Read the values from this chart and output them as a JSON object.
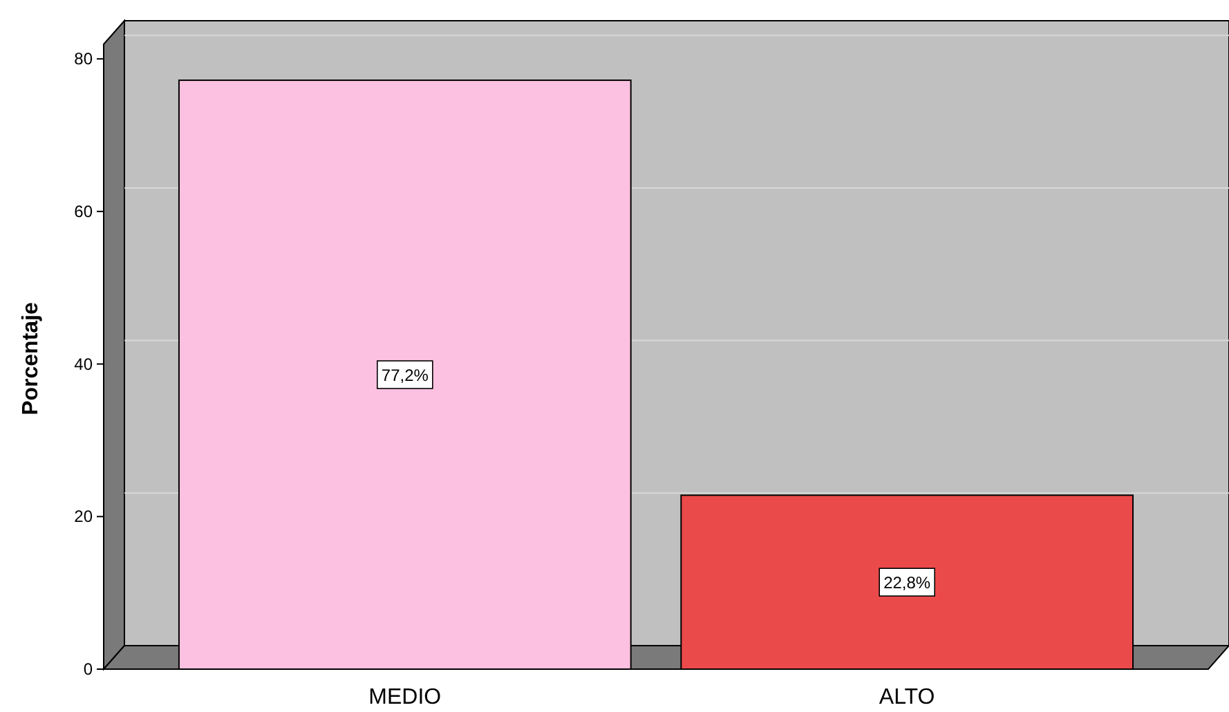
{
  "chart_data": {
    "type": "bar",
    "ylabel": "Porcentaje",
    "categories": [
      "MEDIO",
      "ALTO"
    ],
    "values": [
      77.2,
      22.8
    ],
    "colors": [
      "#fcc0e0",
      "#eb4a4a"
    ],
    "value_labels": [
      "77,2%",
      "22,8%"
    ],
    "ylim": [
      0,
      85
    ],
    "yticks": [
      0,
      20,
      40,
      60,
      80
    ],
    "grid": "y"
  }
}
